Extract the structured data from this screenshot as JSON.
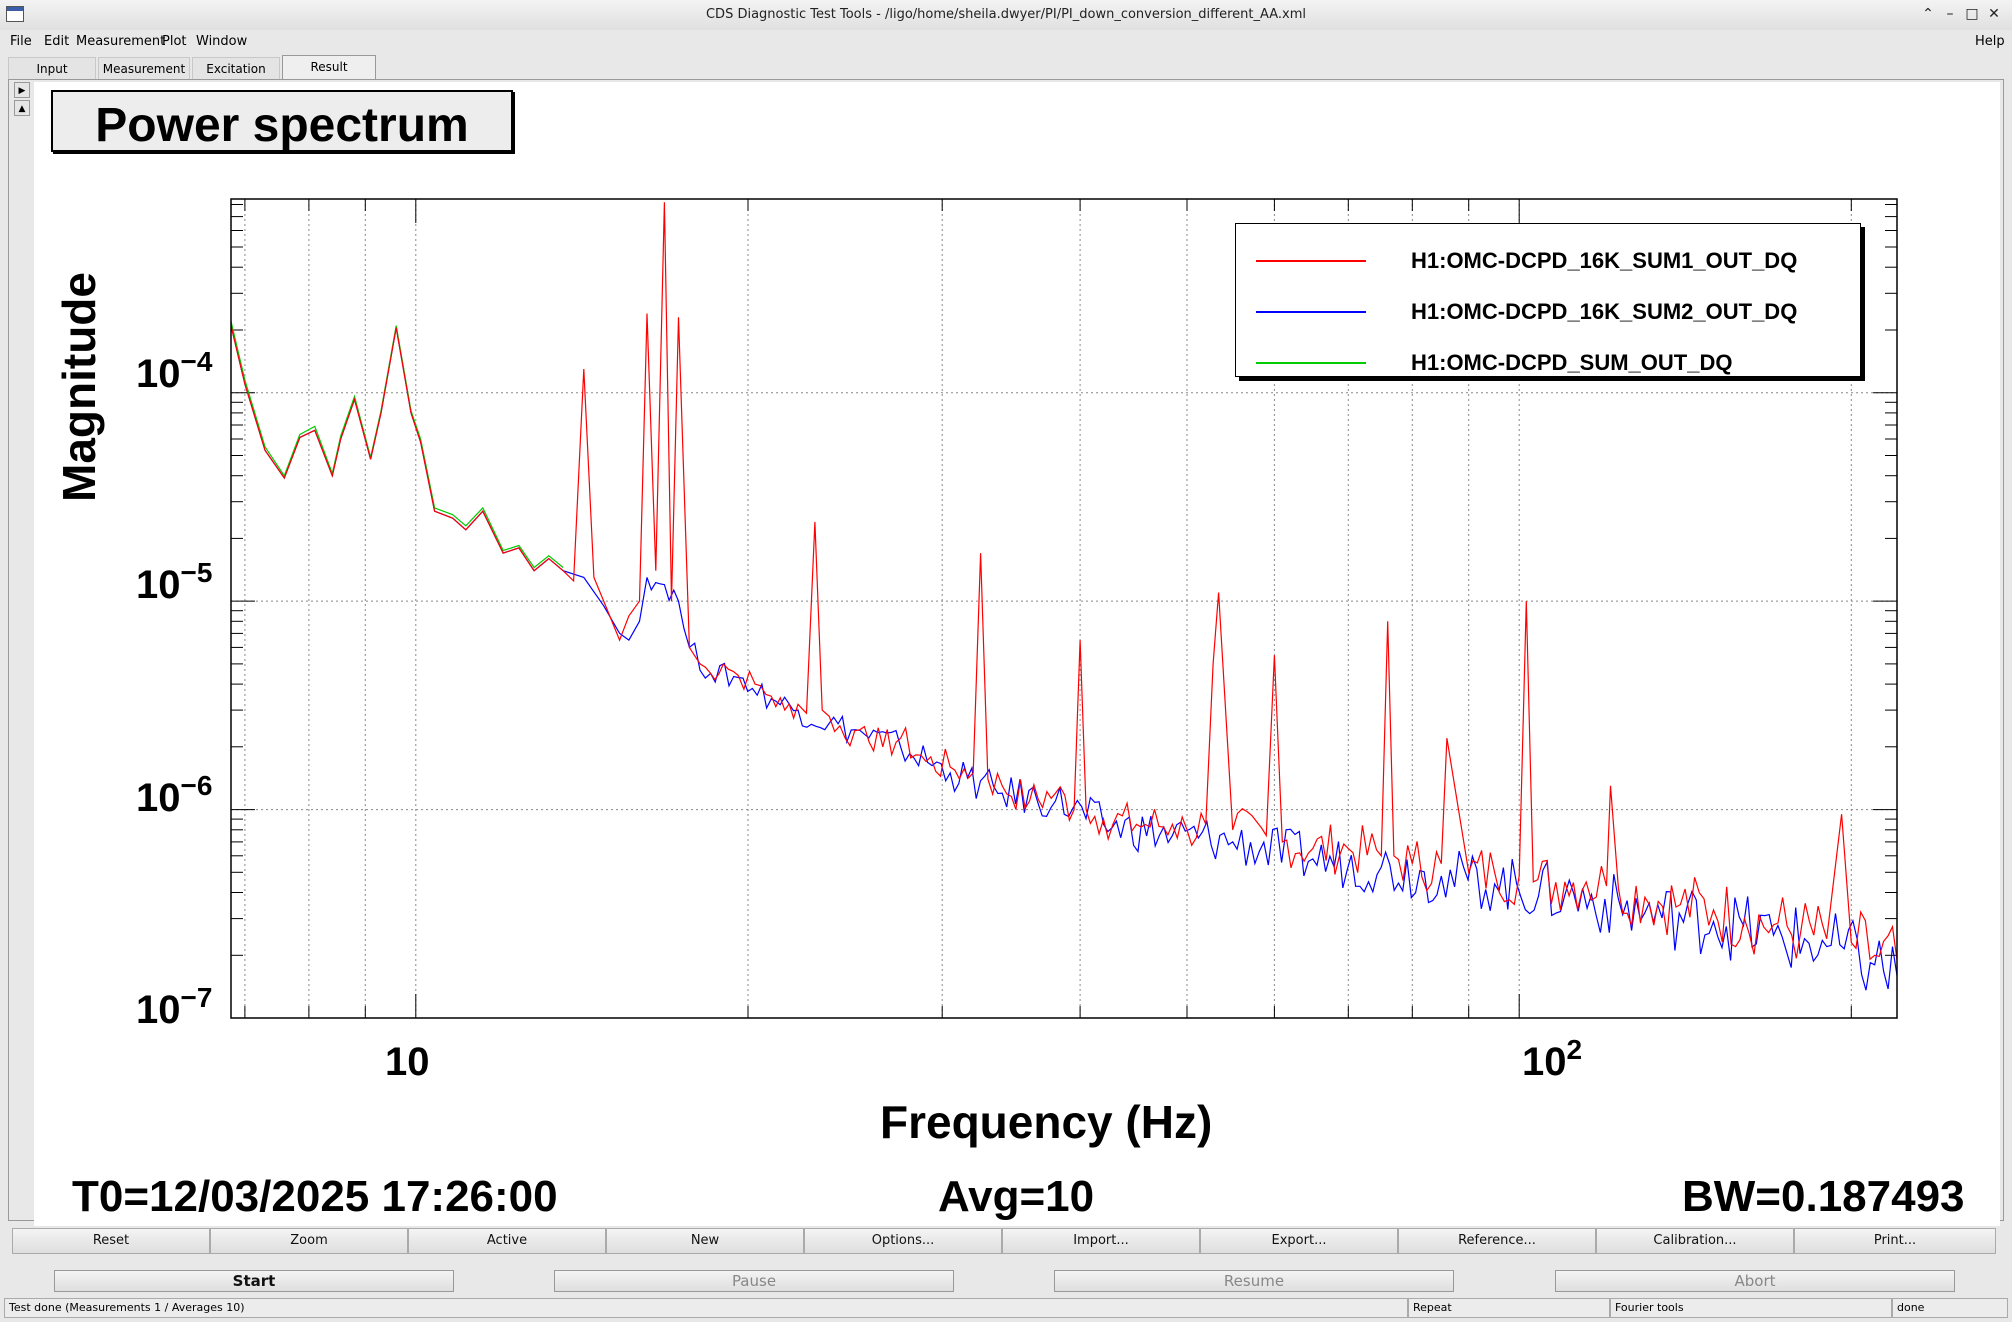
{
  "window": {
    "title": "CDS Diagnostic Test Tools - /ligo/home/sheila.dwyer/PI/PI_down_conversion_different_AA.xml",
    "help": "Help"
  },
  "menu": {
    "file": "File",
    "edit": "Edit",
    "measurement": "Measurement",
    "plot": "Plot",
    "window": "Window"
  },
  "tabs": [
    "Input",
    "Measurement",
    "Excitation",
    "Result"
  ],
  "plot": {
    "title": "Power spectrum",
    "footer": {
      "t0": "T0=12/03/2025 17:26:00",
      "avg": "Avg=10",
      "bw": "BW=0.187493"
    }
  },
  "buttons": {
    "reset": "Reset",
    "zoom": "Zoom",
    "active": "Active",
    "new": "New",
    "options": "Options...",
    "import": "Import...",
    "export": "Export...",
    "reference": "Reference...",
    "calibration": "Calibration...",
    "print": "Print..."
  },
  "controls": {
    "start": "Start",
    "pause": "Pause",
    "resume": "Resume",
    "abort": "Abort"
  },
  "status": {
    "main": "Test done (Measurements 1 / Averages 10)",
    "repeat": "Repeat",
    "tool": "Fourier tools",
    "state": "done"
  },
  "chart_data": {
    "type": "line",
    "xlabel": "Frequency (Hz)",
    "ylabel": "Magnitude",
    "xscale": "log",
    "yscale": "log",
    "xlim": [
      6.8,
      220
    ],
    "ylim": [
      1e-07,
      0.00085
    ],
    "xtick_labels": {
      "10": "10",
      "100": "10^2"
    },
    "ytick_labels": {
      "0.0001": "10^-4",
      "1e-05": "10^-5",
      "1e-06": "10^-6",
      "1e-07": "10^-7"
    },
    "grid": true,
    "legend_position": "top-right",
    "series": [
      {
        "name": "H1:OMC-DCPD_16K_SUM1_OUT_DQ",
        "color": "#ff0000",
        "x": [
          6.8,
          7.0,
          7.3,
          7.6,
          7.85,
          8.1,
          8.4,
          8.55,
          8.8,
          9.1,
          9.3,
          9.6,
          9.9,
          10.1,
          10.4,
          10.8,
          11.1,
          11.5,
          12.0,
          12.4,
          12.8,
          13.2,
          13.6,
          13.9,
          14.2,
          14.5,
          14.8,
          15.3,
          15.6,
          15.95,
          16.2,
          16.5,
          16.8,
          17.05,
          17.3,
          17.7,
          18.1,
          18.5,
          19.0,
          19.6,
          20.3,
          21.0,
          21.6,
          22.2,
          22.6,
          23.0,
          23.35,
          23.7,
          24.5,
          25.5,
          26.5,
          27.5,
          29.0,
          30.5,
          32.0,
          32.5,
          33.0,
          34.0,
          36.0,
          38.0,
          39.5,
          40.0,
          40.5,
          42.0,
          45.0,
          48.5,
          50.0,
          52.0,
          52.8,
          53.4,
          55.0,
          59.0,
          60.0,
          61.0,
          65.0,
          70.0,
          75.0,
          76.0,
          77.0,
          80.0,
          85.0,
          86.0,
          90.0,
          95.0,
          100.0,
          101.5,
          103.0,
          110.0,
          115.0,
          120.0,
          121.0,
          123.0,
          130.0,
          140.0,
          150.0,
          160.0,
          170.0,
          180.0,
          190.0,
          196.0,
          200.0,
          210.0,
          220.0
        ],
        "y": [
          0.00021,
          0.00011,
          5.3e-05,
          3.9e-05,
          6.1e-05,
          6.6e-05,
          4e-05,
          6e-05,
          9.3e-05,
          4.8e-05,
          8e-05,
          0.000205,
          8e-05,
          5.8e-05,
          2.7e-05,
          2.5e-05,
          2.2e-05,
          2.7e-05,
          1.7e-05,
          1.8e-05,
          1.4e-05,
          1.6e-05,
          1.4e-05,
          1.25e-05,
          0.00013,
          1.3e-05,
          1e-05,
          6.5e-06,
          8.5e-06,
          1e-05,
          0.00024,
          1.4e-05,
          0.00082,
          1e-05,
          0.00023,
          6e-06,
          5e-06,
          4.5e-06,
          5e-06,
          4.4e-06,
          4e-06,
          3.5e-06,
          3e-06,
          3.2e-06,
          2.9e-06,
          2.4e-05,
          3e-06,
          2.8e-06,
          2.2e-06,
          2.5e-06,
          2e-06,
          2.2e-06,
          1.7e-06,
          1.6e-06,
          1.5e-06,
          1.7e-05,
          1.4e-06,
          1.3e-06,
          1.1e-06,
          1.2e-06,
          1e-06,
          6.5e-06,
          1e-06,
          9e-07,
          8.5e-07,
          8.5e-07,
          8e-07,
          8.5e-07,
          5e-06,
          1.1e-05,
          8e-07,
          7.5e-07,
          5.5e-06,
          7e-07,
          6.5e-07,
          6.5e-07,
          6e-07,
          8e-06,
          6e-07,
          5.5e-07,
          5.5e-07,
          2.2e-06,
          5e-07,
          5e-07,
          4.8e-07,
          1e-05,
          4.5e-07,
          4.5e-07,
          4.5e-07,
          4.3e-07,
          1.3e-06,
          4.2e-07,
          3.8e-07,
          3.5e-07,
          3.3e-07,
          3e-07,
          2.8e-07,
          2.6e-07,
          2.4e-07,
          9.5e-07,
          2.3e-07,
          2e-07,
          1.9e-07
        ]
      },
      {
        "name": "H1:OMC-DCPD_16K_SUM2_OUT_DQ",
        "color": "#0000ff",
        "x": [
          6.8,
          7.0,
          7.3,
          7.6,
          7.85,
          8.1,
          8.4,
          8.55,
          8.8,
          9.1,
          9.3,
          9.6,
          9.9,
          10.1,
          10.4,
          10.8,
          11.1,
          11.5,
          12.0,
          12.4,
          12.8,
          13.2,
          13.6,
          14.2,
          14.8,
          15.3,
          15.6,
          15.95,
          16.2,
          16.8,
          17.3,
          17.7,
          18.5,
          19.6,
          21.0,
          22.2,
          23.7,
          25.5,
          27.5,
          30.5,
          34.0,
          38.0,
          42.0,
          48.5,
          55.0,
          65.0,
          75.0,
          85.0,
          95.0,
          110.0,
          130.0,
          150.0,
          170.0,
          190.0,
          210.0,
          220.0
        ],
        "y": [
          0.00021,
          0.00011,
          5.3e-05,
          3.9e-05,
          6.1e-05,
          6.6e-05,
          4e-05,
          6e-05,
          9.3e-05,
          4.8e-05,
          8e-05,
          0.000205,
          8e-05,
          5.8e-05,
          2.7e-05,
          2.5e-05,
          2.2e-05,
          2.7e-05,
          1.7e-05,
          1.8e-05,
          1.4e-05,
          1.6e-05,
          1.4e-05,
          1.3e-05,
          9.5e-06,
          7e-06,
          6.5e-06,
          8e-06,
          1.3e-05,
          1.2e-05,
          1e-05,
          6e-06,
          4.5e-06,
          4.3e-06,
          3.4e-06,
          3e-06,
          2.6e-06,
          2.3e-06,
          2e-06,
          1.5e-06,
          1.2e-06,
          1.1e-06,
          8.5e-07,
          7.5e-07,
          7e-07,
          5.8e-07,
          5.3e-07,
          4.8e-07,
          4.4e-07,
          3.9e-07,
          3.2e-07,
          2.9e-07,
          2.5e-07,
          2.2e-07,
          1.8e-07,
          1.6e-07
        ]
      },
      {
        "name": "H1:OMC-DCPD_SUM_OUT_DQ",
        "color": "#00cc00",
        "x": [
          6.8,
          7.0,
          7.3,
          7.6,
          7.85,
          8.1,
          8.4,
          8.55,
          8.8,
          9.1,
          9.3,
          9.6,
          9.9,
          10.1,
          10.4,
          10.8,
          11.1,
          11.5,
          12.0,
          12.4,
          12.8,
          13.2,
          13.6
        ],
        "y": [
          0.00022,
          0.000115,
          5.5e-05,
          4e-05,
          6.3e-05,
          6.9e-05,
          4.1e-05,
          6.2e-05,
          9.6e-05,
          4.9e-05,
          8.2e-05,
          0.00021,
          8.2e-05,
          6e-05,
          2.8e-05,
          2.6e-05,
          2.3e-05,
          2.8e-05,
          1.75e-05,
          1.85e-05,
          1.45e-05,
          1.65e-05,
          1.45e-05
        ]
      }
    ]
  }
}
